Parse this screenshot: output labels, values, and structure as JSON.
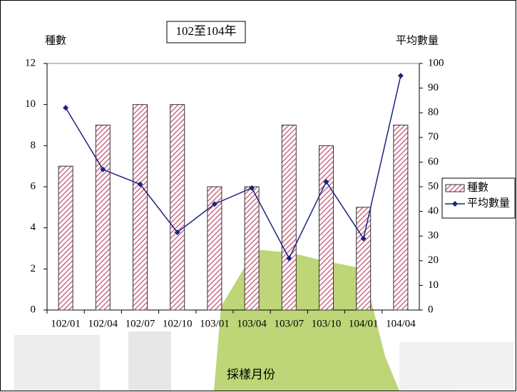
{
  "chart_data": {
    "type": "bar",
    "title": "102至104年",
    "y_label": "種數",
    "y2_label": "平均數量",
    "x_label": "採樣月份",
    "categories": [
      "102/01",
      "102/04",
      "102/07",
      "102/10",
      "103/01",
      "103/04",
      "103/07",
      "103/10",
      "104/01",
      "104/04"
    ],
    "series": [
      {
        "name": "種數",
        "type": "bar",
        "color": "#c0506e",
        "values": [
          7,
          9,
          10,
          10,
          6,
          6,
          9,
          8,
          5,
          9
        ]
      },
      {
        "name": "平均數量",
        "type": "line",
        "axis": "y2",
        "color": "#1a237e",
        "values": [
          82,
          57,
          51,
          31.5,
          43,
          49.5,
          21,
          52,
          29,
          95
        ]
      }
    ],
    "ylim": [
      0,
      12
    ],
    "yticks": [
      0,
      2,
      4,
      6,
      8,
      10,
      12
    ],
    "y2lim": [
      0,
      100
    ],
    "y2ticks": [
      0,
      10,
      20,
      30,
      40,
      50,
      60,
      70,
      80,
      90,
      100
    ],
    "legend": "right"
  }
}
